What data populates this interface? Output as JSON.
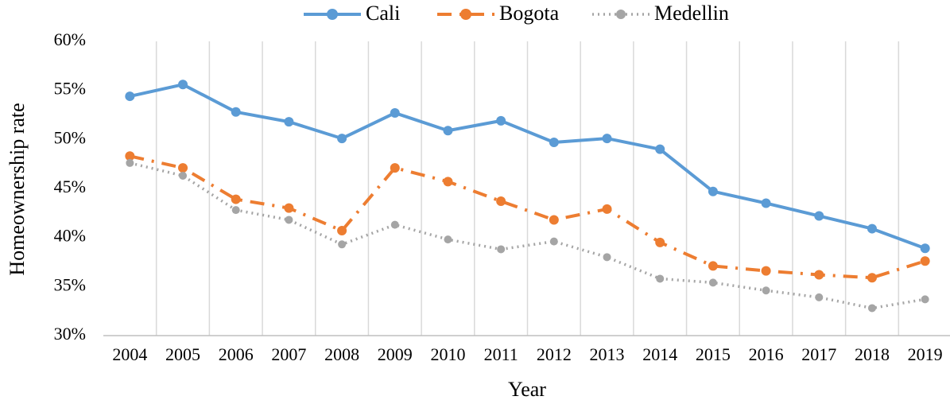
{
  "chart_data": {
    "type": "line",
    "x_label": "Year",
    "y_label": "Homeownership rate",
    "categories": [
      "2004",
      "2005",
      "2006",
      "2007",
      "2008",
      "2009",
      "2010",
      "2011",
      "2012",
      "2013",
      "2014",
      "2015",
      "2016",
      "2017",
      "2018",
      "2019"
    ],
    "series": [
      {
        "name": "Cali",
        "color": "#5b9bd5",
        "values": [
          54.4,
          55.6,
          52.8,
          51.8,
          50.1,
          52.7,
          50.9,
          51.9,
          49.7,
          50.1,
          49.0,
          44.7,
          43.5,
          42.2,
          40.9,
          38.9
        ]
      },
      {
        "name": "Bogota",
        "color": "#ed7d31",
        "values": [
          48.3,
          47.1,
          43.9,
          43.0,
          40.7,
          47.1,
          45.7,
          43.7,
          41.8,
          42.9,
          39.5,
          37.1,
          36.6,
          36.2,
          35.9,
          37.6
        ]
      },
      {
        "name": "Medellin",
        "color": "#a5a5a5",
        "values": [
          47.6,
          46.3,
          42.8,
          41.8,
          39.3,
          41.3,
          39.8,
          38.8,
          39.6,
          38.0,
          35.8,
          35.4,
          34.6,
          33.9,
          32.8,
          33.7
        ]
      }
    ],
    "ylim": [
      30,
      60
    ],
    "yticks": [
      {
        "value": 30,
        "label": "30%"
      },
      {
        "value": 35,
        "label": "35%"
      },
      {
        "value": 40,
        "label": "40%"
      },
      {
        "value": 45,
        "label": "45%"
      },
      {
        "value": 50,
        "label": "50%"
      },
      {
        "value": 55,
        "label": "55%"
      },
      {
        "value": 60,
        "label": "60%"
      }
    ],
    "legend": "top"
  }
}
